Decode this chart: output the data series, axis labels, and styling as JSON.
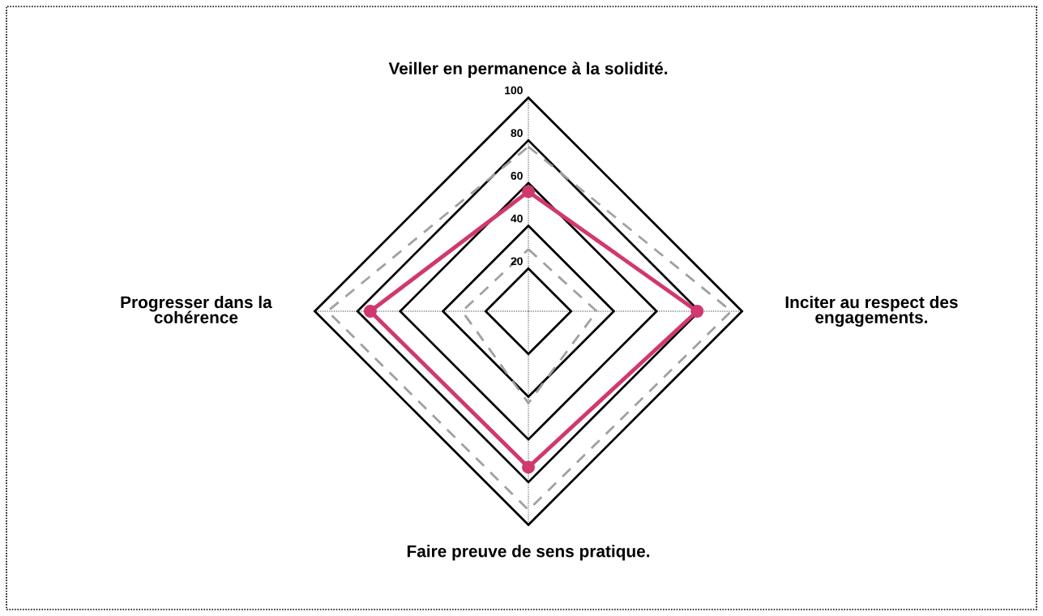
{
  "chart_data": {
    "type": "radar",
    "categories": [
      "Veiller en permanence à la solidité.",
      "Inciter au respect des\nengagements.",
      "Faire preuve de sens pratique.",
      "Progresser dans la\ncohérence"
    ],
    "series": [
      {
        "color": "#d0386e",
        "values": [
          56,
          79,
          73,
          74
        ],
        "marker": "circle",
        "line_style": "solid"
      },
      {
        "color": "#a0a0a0",
        "values": [
          77,
          95,
          93,
          94
        ],
        "marker": "none",
        "line_style": "dashed"
      },
      {
        "color": "#a0a0a0",
        "values": [
          29,
          32,
          43,
          31
        ],
        "marker": "none",
        "line_style": "dashed"
      }
    ],
    "ylim": [
      0,
      100
    ],
    "yticks": [
      20,
      40,
      60,
      80,
      100
    ],
    "grid": true
  }
}
